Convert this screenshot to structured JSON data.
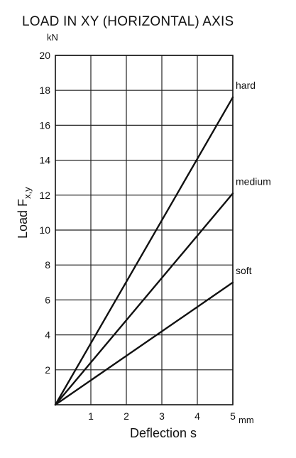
{
  "chart_data": {
    "type": "line",
    "title": "LOAD IN XY (HORIZONTAL) AXIS",
    "xlabel": "Deflection s",
    "x_unit": "mm",
    "ylabel_main": "Load F",
    "ylabel_sub": "x,y",
    "y_unit": "kN",
    "xlim": [
      0,
      5
    ],
    "ylim": [
      0,
      20
    ],
    "x_ticks": [
      "1",
      "2",
      "3",
      "4",
      "5"
    ],
    "y_ticks": [
      "2",
      "4",
      "6",
      "8",
      "10",
      "12",
      "14",
      "16",
      "18",
      "20"
    ],
    "grid": true,
    "series": [
      {
        "name": "hard",
        "x": [
          0,
          5
        ],
        "y": [
          0,
          17.6
        ]
      },
      {
        "name": "medium",
        "x": [
          0,
          5
        ],
        "y": [
          0,
          12.1
        ]
      },
      {
        "name": "soft",
        "x": [
          0,
          5
        ],
        "y": [
          0,
          7.0
        ]
      }
    ]
  }
}
